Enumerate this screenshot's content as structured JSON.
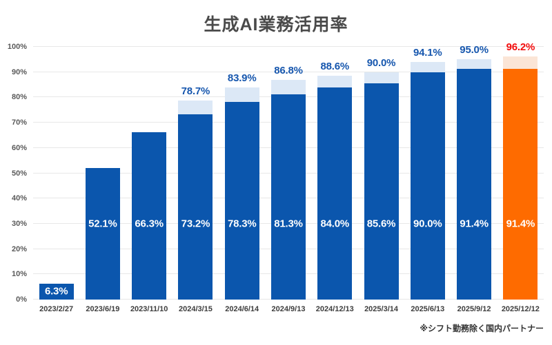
{
  "footnote": "※シフト勤務除く国内パートナー",
  "colors": {
    "bar_main": "#0b56ad",
    "cap_main": "#dce8f6",
    "bar_highlight": "#fe6b00",
    "cap_highlight": "#fbe5d6",
    "top_label_main": "#1757ae",
    "top_label_highlight": "#f20d0d",
    "inside_label": "#ffffff",
    "grid": "#e7e7e7",
    "axis_text": "#595959",
    "title_text": "#4a4a4a"
  },
  "chart_data": {
    "type": "bar",
    "title": "生成AI業務活用率",
    "stacked": true,
    "grid": true,
    "legend_position": "none",
    "xlabel": "",
    "ylabel": "",
    "ylim": [
      0,
      100
    ],
    "y_ticks": [
      "0%",
      "10%",
      "20%",
      "30%",
      "40%",
      "50%",
      "60%",
      "70%",
      "80%",
      "90%",
      "100%"
    ],
    "categories": [
      "2023/2/27",
      "2023/6/19",
      "2023/11/10",
      "2024/3/15",
      "2024/6/14",
      "2024/9/13",
      "2024/12/13",
      "2025/3/14",
      "2025/6/13",
      "2025/9/12",
      "2025/12/12"
    ],
    "series": [
      {
        "name": "main",
        "values": [
          6.3,
          52.1,
          66.3,
          73.2,
          78.3,
          81.3,
          84.0,
          85.6,
          90.0,
          91.4,
          91.4
        ]
      },
      {
        "name": "cap_total",
        "values": [
          null,
          null,
          null,
          78.7,
          83.9,
          86.8,
          88.6,
          90.0,
          94.1,
          95.0,
          96.2
        ]
      }
    ],
    "bars": [
      {
        "date": "2023/2/27",
        "value": 6.3,
        "value_label": "6.3%",
        "total": null,
        "total_label": "",
        "highlight": false
      },
      {
        "date": "2023/6/19",
        "value": 52.1,
        "value_label": "52.1%",
        "total": null,
        "total_label": "",
        "highlight": false
      },
      {
        "date": "2023/11/10",
        "value": 66.3,
        "value_label": "66.3%",
        "total": null,
        "total_label": "",
        "highlight": false
      },
      {
        "date": "2024/3/15",
        "value": 73.2,
        "value_label": "73.2%",
        "total": 78.7,
        "total_label": "78.7%",
        "highlight": false
      },
      {
        "date": "2024/6/14",
        "value": 78.3,
        "value_label": "78.3%",
        "total": 83.9,
        "total_label": "83.9%",
        "highlight": false
      },
      {
        "date": "2024/9/13",
        "value": 81.3,
        "value_label": "81.3%",
        "total": 86.8,
        "total_label": "86.8%",
        "highlight": false
      },
      {
        "date": "2024/12/13",
        "value": 84.0,
        "value_label": "84.0%",
        "total": 88.6,
        "total_label": "88.6%",
        "highlight": false
      },
      {
        "date": "2025/3/14",
        "value": 85.6,
        "value_label": "85.6%",
        "total": 90.0,
        "total_label": "90.0%",
        "highlight": false
      },
      {
        "date": "2025/6/13",
        "value": 90.0,
        "value_label": "90.0%",
        "total": 94.1,
        "total_label": "94.1%",
        "highlight": false
      },
      {
        "date": "2025/9/12",
        "value": 91.4,
        "value_label": "91.4%",
        "total": 95.0,
        "total_label": "95.0%",
        "highlight": false
      },
      {
        "date": "2025/12/12",
        "value": 91.4,
        "value_label": "91.4%",
        "total": 96.2,
        "total_label": "96.2%",
        "highlight": true
      }
    ]
  }
}
